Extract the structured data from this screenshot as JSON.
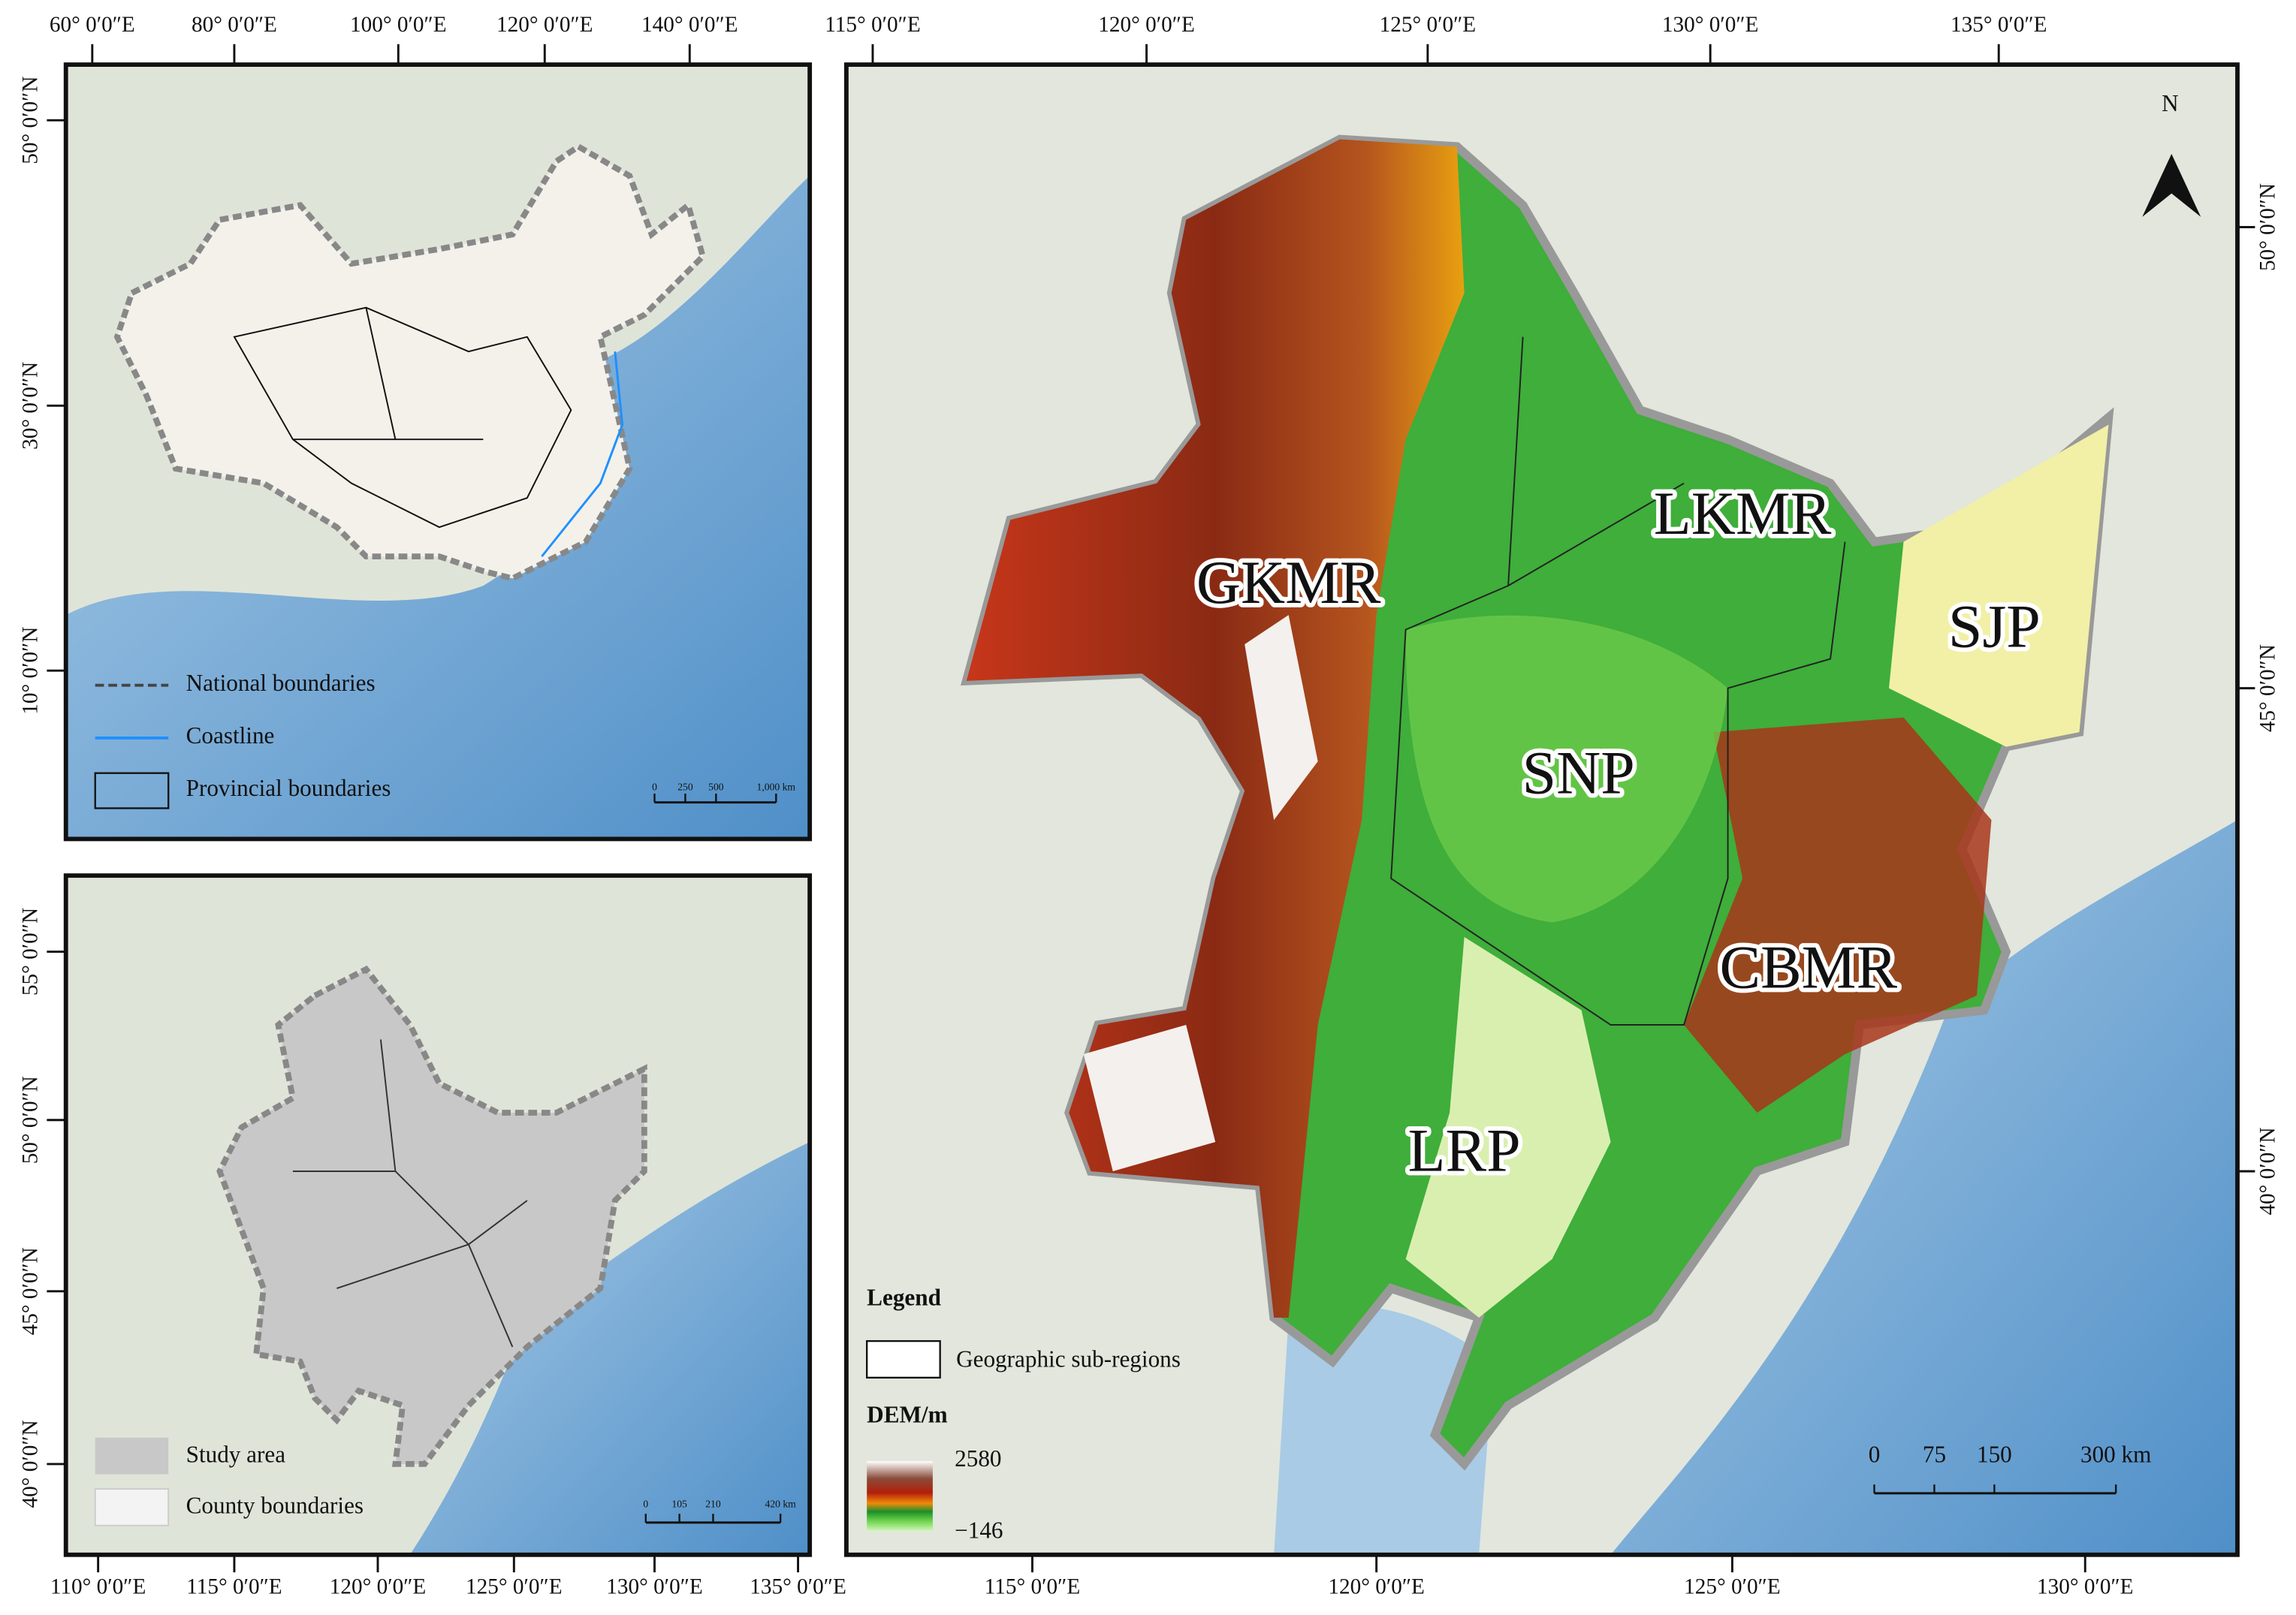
{
  "inset_china": {
    "top_axis": [
      "60° 0′0″E",
      "80° 0′0″E",
      "100° 0′0″E",
      "120° 0′0″E",
      "140° 0′0″E"
    ],
    "left_axis": [
      "50° 0′0″N",
      "30° 0′0″N",
      "10° 0′0″N"
    ],
    "legend": [
      "National boundaries",
      "Coastline",
      "Provincial boundaries"
    ],
    "scale_bar": [
      "0",
      "250",
      "500",
      "1,000 km"
    ]
  },
  "inset_study": {
    "left_axis": [
      "55° 0′0″N",
      "50° 0′0″N",
      "45° 0′0″N",
      "40° 0′0″N"
    ],
    "bottom_axis": [
      "110° 0′0″E",
      "115° 0′0″E",
      "120° 0′0″E",
      "125° 0′0″E",
      "130° 0′0″E",
      "135° 0′0″E"
    ],
    "legend": [
      "Study area",
      "County boundaries"
    ],
    "scale_bar": [
      "0",
      "105",
      "210",
      "420 km"
    ]
  },
  "main_map": {
    "top_axis": [
      "115° 0′0″E",
      "120° 0′0″E",
      "125° 0′0″E",
      "130° 0′0″E",
      "135° 0′0″E"
    ],
    "bottom_axis": [
      "115° 0′0″E",
      "120° 0′0″E",
      "125° 0′0″E",
      "130° 0′0″E"
    ],
    "right_axis": [
      "50° 0′0″N",
      "45° 0′0″N",
      "40° 0′0″N"
    ],
    "regions": [
      "GKMR",
      "LKMR",
      "SJP",
      "SNP",
      "CBMR",
      "LRP"
    ],
    "north_arrow": "N",
    "legend": {
      "title": "Legend",
      "items": [
        "Geographic sub-regions"
      ],
      "dem_title": "DEM/m",
      "dem_max": "2580",
      "dem_min": "−146"
    },
    "scale_bar": [
      "0",
      "75",
      "150",
      "300 km"
    ]
  }
}
